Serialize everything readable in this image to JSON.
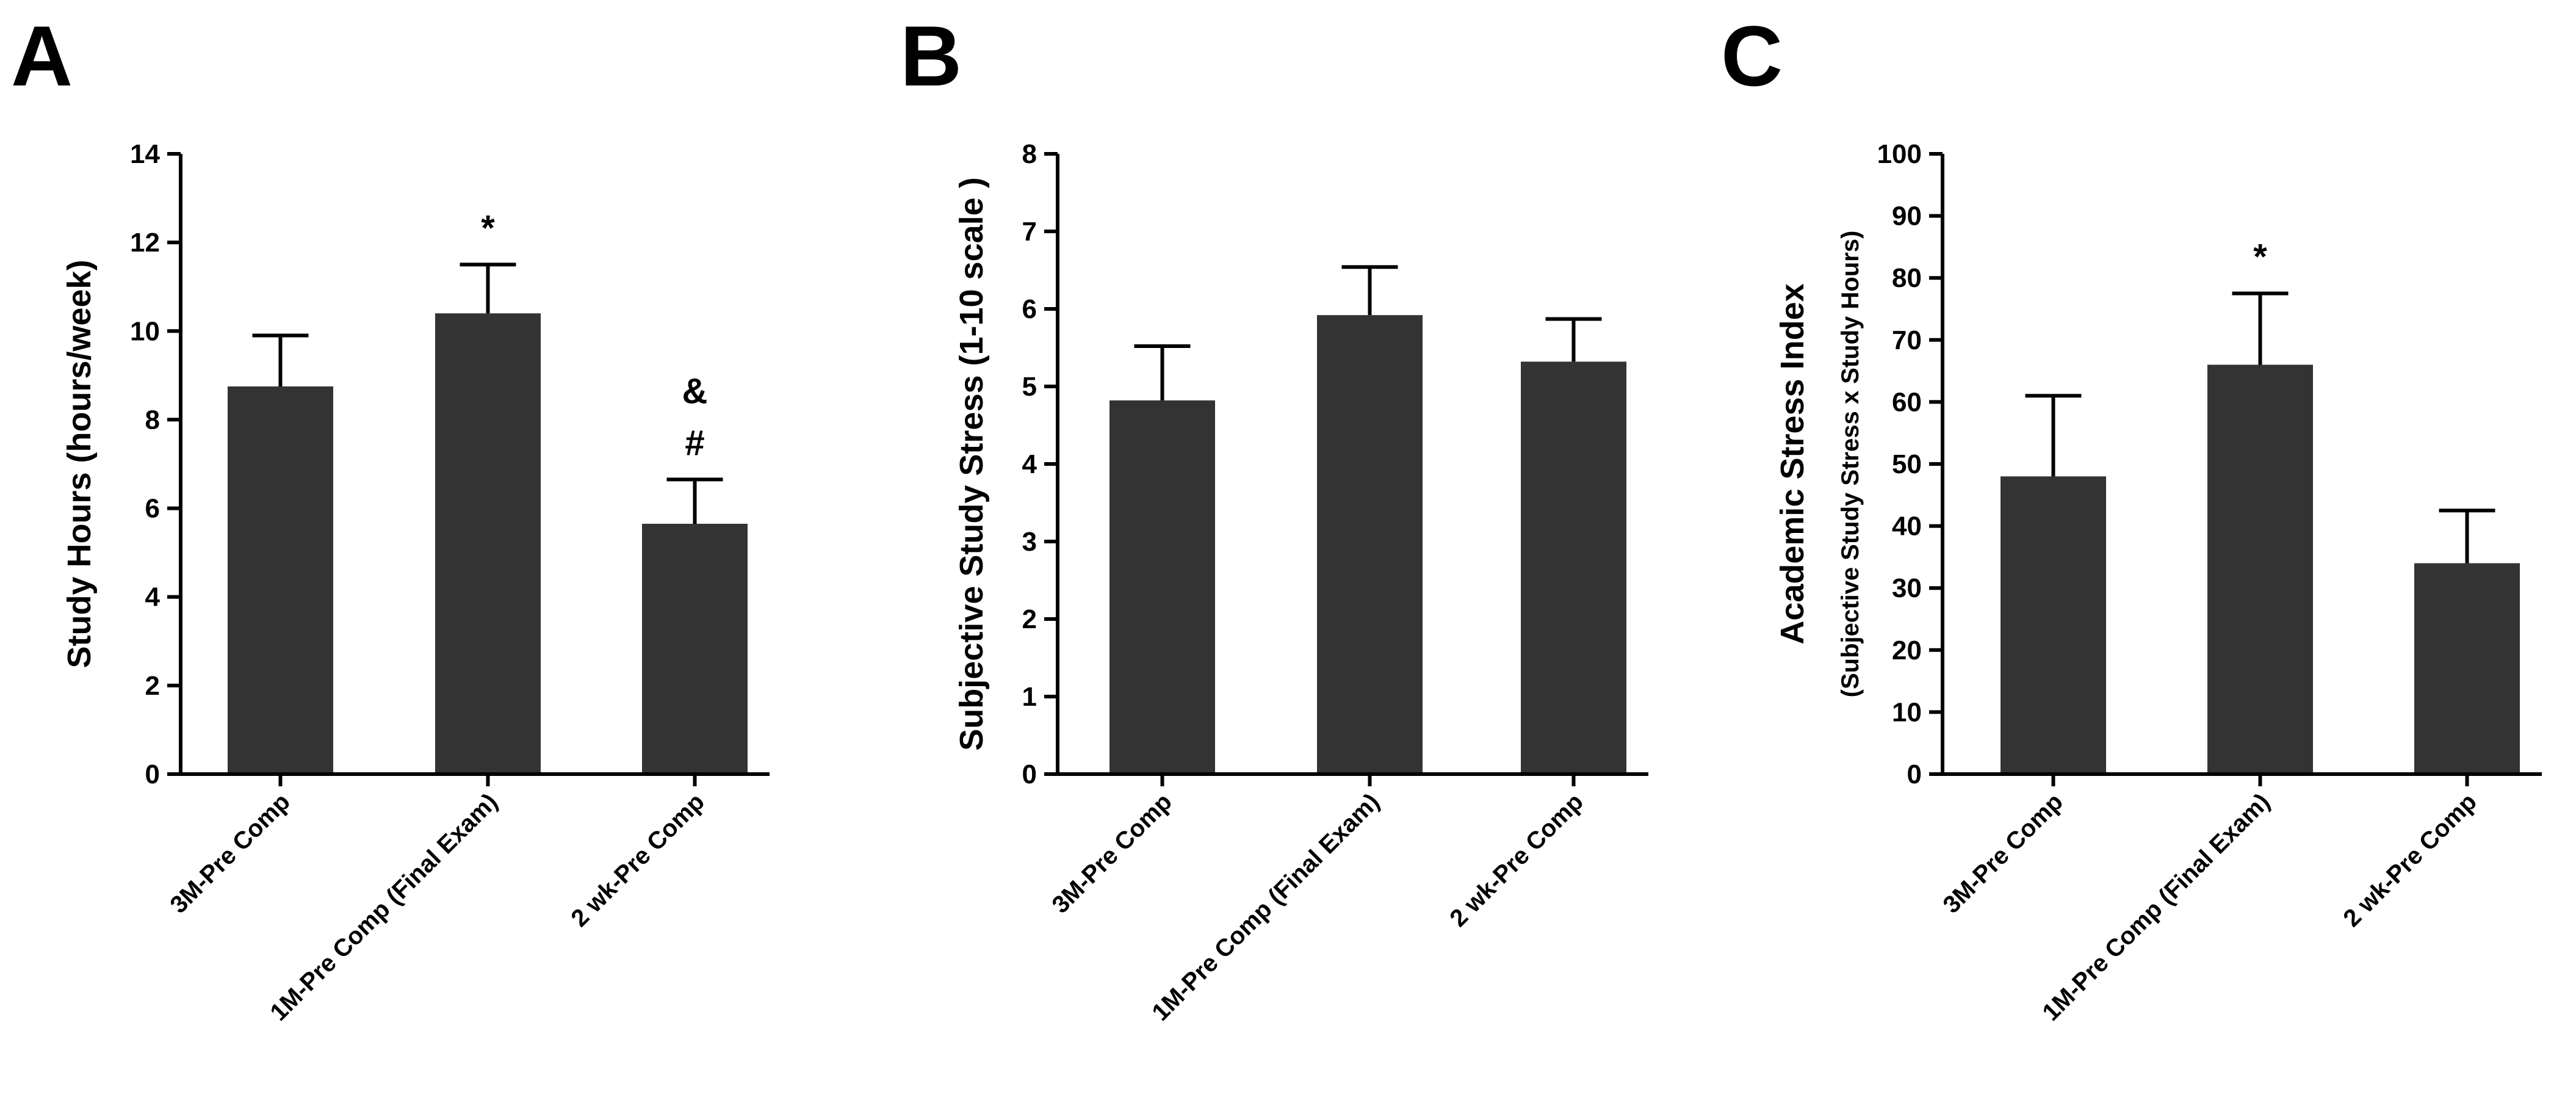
{
  "chart_data": [
    {
      "type": "bar",
      "panel": "A",
      "categories": [
        "3M-Pre Comp",
        "1M-Pre Comp (Final Exam)",
        "2 wk-Pre Comp"
      ],
      "values": [
        8.75,
        10.4,
        5.65
      ],
      "errors": [
        1.15,
        1.1,
        1.0
      ],
      "annotations": [
        [],
        [
          "*"
        ],
        [
          "#",
          "&"
        ]
      ],
      "ylabel": "Study Hours (hours/week)",
      "ylabel_sub": "",
      "ylim": [
        0,
        14
      ],
      "yticks": [
        0,
        2,
        4,
        6,
        8,
        10,
        12,
        14
      ]
    },
    {
      "type": "bar",
      "panel": "B",
      "categories": [
        "3M-Pre Comp",
        "1M-Pre Comp (Final Exam)",
        "2 wk-Pre Comp"
      ],
      "values": [
        4.82,
        5.92,
        5.32
      ],
      "errors": [
        0.7,
        0.62,
        0.55
      ],
      "annotations": [
        [],
        [],
        []
      ],
      "ylabel": "Subjective Study Stress (1-10 scale )",
      "ylabel_sub": "",
      "ylim": [
        0,
        8
      ],
      "yticks": [
        0,
        1,
        2,
        3,
        4,
        5,
        6,
        7,
        8
      ]
    },
    {
      "type": "bar",
      "panel": "C",
      "categories": [
        "3M-Pre Comp",
        "1M-Pre Comp (Final Exam)",
        "2 wk-Pre Comp"
      ],
      "values": [
        48,
        66,
        34
      ],
      "errors": [
        13,
        11.5,
        8.5
      ],
      "annotations": [
        [],
        [
          "*"
        ],
        []
      ],
      "ylabel": "Academic Stress Index",
      "ylabel_sub": "(Subjective Study Stress x Study Hours)",
      "ylim": [
        0,
        100
      ],
      "yticks": [
        0,
        10,
        20,
        30,
        40,
        50,
        60,
        70,
        80,
        90,
        100
      ]
    }
  ]
}
